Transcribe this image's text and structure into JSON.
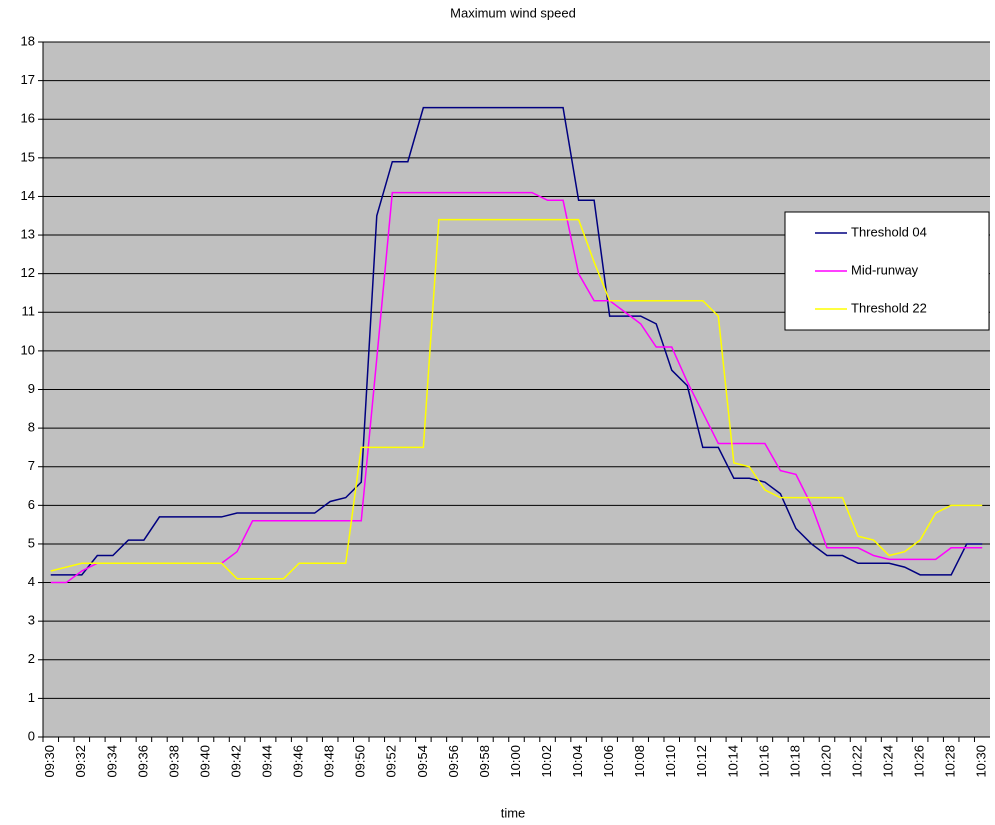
{
  "chart_data": {
    "type": "line",
    "title": "Maximum wind speed",
    "x_label": "time",
    "categories": [
      "09:30",
      null,
      "09:32",
      null,
      "09:34",
      null,
      "09:36",
      null,
      "09:38",
      null,
      "09:40",
      null,
      "09:42",
      null,
      "09:44",
      null,
      "09:46",
      null,
      "09:48",
      null,
      "09:50",
      null,
      "09:52",
      null,
      "09:54",
      null,
      "09:56",
      null,
      "09:58",
      null,
      "10:00",
      null,
      "10:02",
      null,
      "10:04",
      null,
      "10:06",
      null,
      "10:08",
      null,
      "10:10",
      null,
      "10:12",
      null,
      "10:14",
      null,
      "10:16",
      null,
      "10:18",
      null,
      "10:20",
      null,
      "10:22",
      null,
      "10:24",
      null,
      "10:26",
      null,
      "10:28",
      null,
      "10:30"
    ],
    "series": [
      {
        "name": "Threshold 04",
        "color": "#000080",
        "values": [
          4.2,
          4.2,
          4.2,
          4.7,
          4.7,
          5.1,
          5.1,
          5.7,
          5.7,
          5.7,
          5.7,
          5.7,
          5.8,
          5.8,
          5.8,
          5.8,
          5.8,
          5.8,
          6.1,
          6.2,
          6.6,
          13.5,
          14.9,
          14.9,
          16.3,
          16.3,
          16.3,
          16.3,
          16.3,
          16.3,
          16.3,
          16.3,
          16.3,
          16.3,
          13.9,
          13.9,
          10.9,
          10.9,
          10.9,
          10.7,
          9.5,
          9.1,
          7.5,
          7.5,
          6.7,
          6.7,
          6.6,
          6.3,
          5.4,
          5.0,
          4.7,
          4.7,
          4.5,
          4.5,
          4.5,
          4.4,
          4.2,
          4.2,
          4.2,
          5.0,
          5.0
        ]
      },
      {
        "name": "Mid-runway",
        "color": "#ff00ff",
        "values": [
          4.0,
          4.0,
          4.3,
          4.5,
          4.5,
          4.5,
          4.5,
          4.5,
          4.5,
          4.5,
          4.5,
          4.5,
          4.8,
          5.6,
          5.6,
          5.6,
          5.6,
          5.6,
          5.6,
          5.6,
          5.6,
          9.8,
          14.1,
          14.1,
          14.1,
          14.1,
          14.1,
          14.1,
          14.1,
          14.1,
          14.1,
          14.1,
          13.9,
          13.9,
          12.0,
          11.3,
          11.3,
          11.0,
          10.7,
          10.1,
          10.1,
          9.2,
          8.4,
          7.6,
          7.6,
          7.6,
          7.6,
          6.9,
          6.8,
          6.0,
          4.9,
          4.9,
          4.9,
          4.7,
          4.6,
          4.6,
          4.6,
          4.6,
          4.9,
          4.9,
          4.9
        ]
      },
      {
        "name": "Threshold 22",
        "color": "#ffff00",
        "values": [
          4.3,
          4.4,
          4.5,
          4.5,
          4.5,
          4.5,
          4.5,
          4.5,
          4.5,
          4.5,
          4.5,
          4.5,
          4.1,
          4.1,
          4.1,
          4.1,
          4.5,
          4.5,
          4.5,
          4.5,
          7.5,
          7.5,
          7.5,
          7.5,
          7.5,
          13.4,
          13.4,
          13.4,
          13.4,
          13.4,
          13.4,
          13.4,
          13.4,
          13.4,
          13.4,
          12.3,
          11.3,
          11.3,
          11.3,
          11.3,
          11.3,
          11.3,
          11.3,
          10.9,
          7.1,
          7.0,
          6.4,
          6.2,
          6.2,
          6.2,
          6.2,
          6.2,
          5.2,
          5.1,
          4.7,
          4.8,
          5.1,
          5.8,
          6.0,
          6.0,
          6.0
        ]
      }
    ],
    "ylim": [
      0,
      18
    ],
    "yticks": [
      0,
      1,
      2,
      3,
      4,
      5,
      6,
      7,
      8,
      9,
      10,
      11,
      12,
      13,
      14,
      15,
      16,
      17,
      18
    ],
    "grid": true,
    "legend": "right",
    "background": "#c0c0c0"
  }
}
